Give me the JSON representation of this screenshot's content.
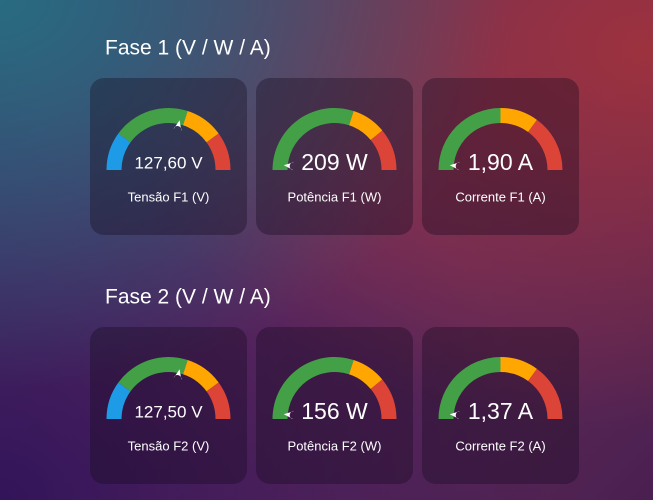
{
  "sections": [
    {
      "title": "Fase 1 (V / W / A)",
      "cards": [
        {
          "value": "127,60 V",
          "name": "Tensão F1 (V)"
        },
        {
          "value": "209 W",
          "name": "Potência F1 (W)"
        },
        {
          "value": "1,90 A",
          "name": "Corrente F1 (A)"
        }
      ]
    },
    {
      "title": "Fase 2 (V / W / A)",
      "cards": [
        {
          "value": "127,50 V",
          "name": "Tensão F2 (V)"
        },
        {
          "value": "156 W",
          "name": "Potência F2 (W)"
        },
        {
          "value": "1,37 A",
          "name": "Corrente F2 (A)"
        }
      ]
    }
  ]
}
